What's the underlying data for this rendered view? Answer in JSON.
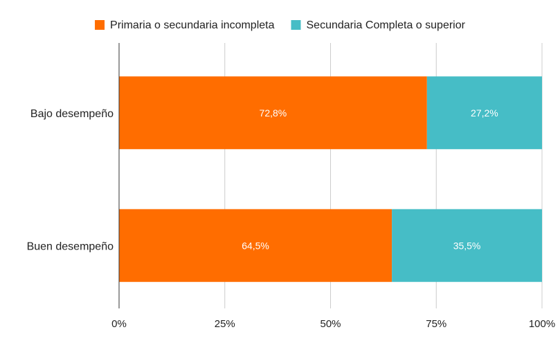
{
  "chart_data": {
    "type": "bar",
    "orientation": "horizontal",
    "stacked": "percent",
    "categories": [
      "Bajo desempeño",
      "Buen desempeño"
    ],
    "series": [
      {
        "name": "Primaria o secundaria incompleta",
        "values": [
          72.8,
          64.5
        ],
        "labels": [
          "72,8%",
          "64,5%"
        ],
        "color": "#FF6D00"
      },
      {
        "name": "Secundaria Completa o superior",
        "values": [
          27.2,
          35.5
        ],
        "labels": [
          "27,2%",
          "35,5%"
        ],
        "color": "#46BDC6"
      }
    ],
    "xlim": [
      0,
      100
    ],
    "xticks": [
      0,
      25,
      50,
      75,
      100
    ],
    "xtick_labels": [
      "0%",
      "25%",
      "50%",
      "75%",
      "100%"
    ],
    "legend_position": "top",
    "grid": true
  }
}
